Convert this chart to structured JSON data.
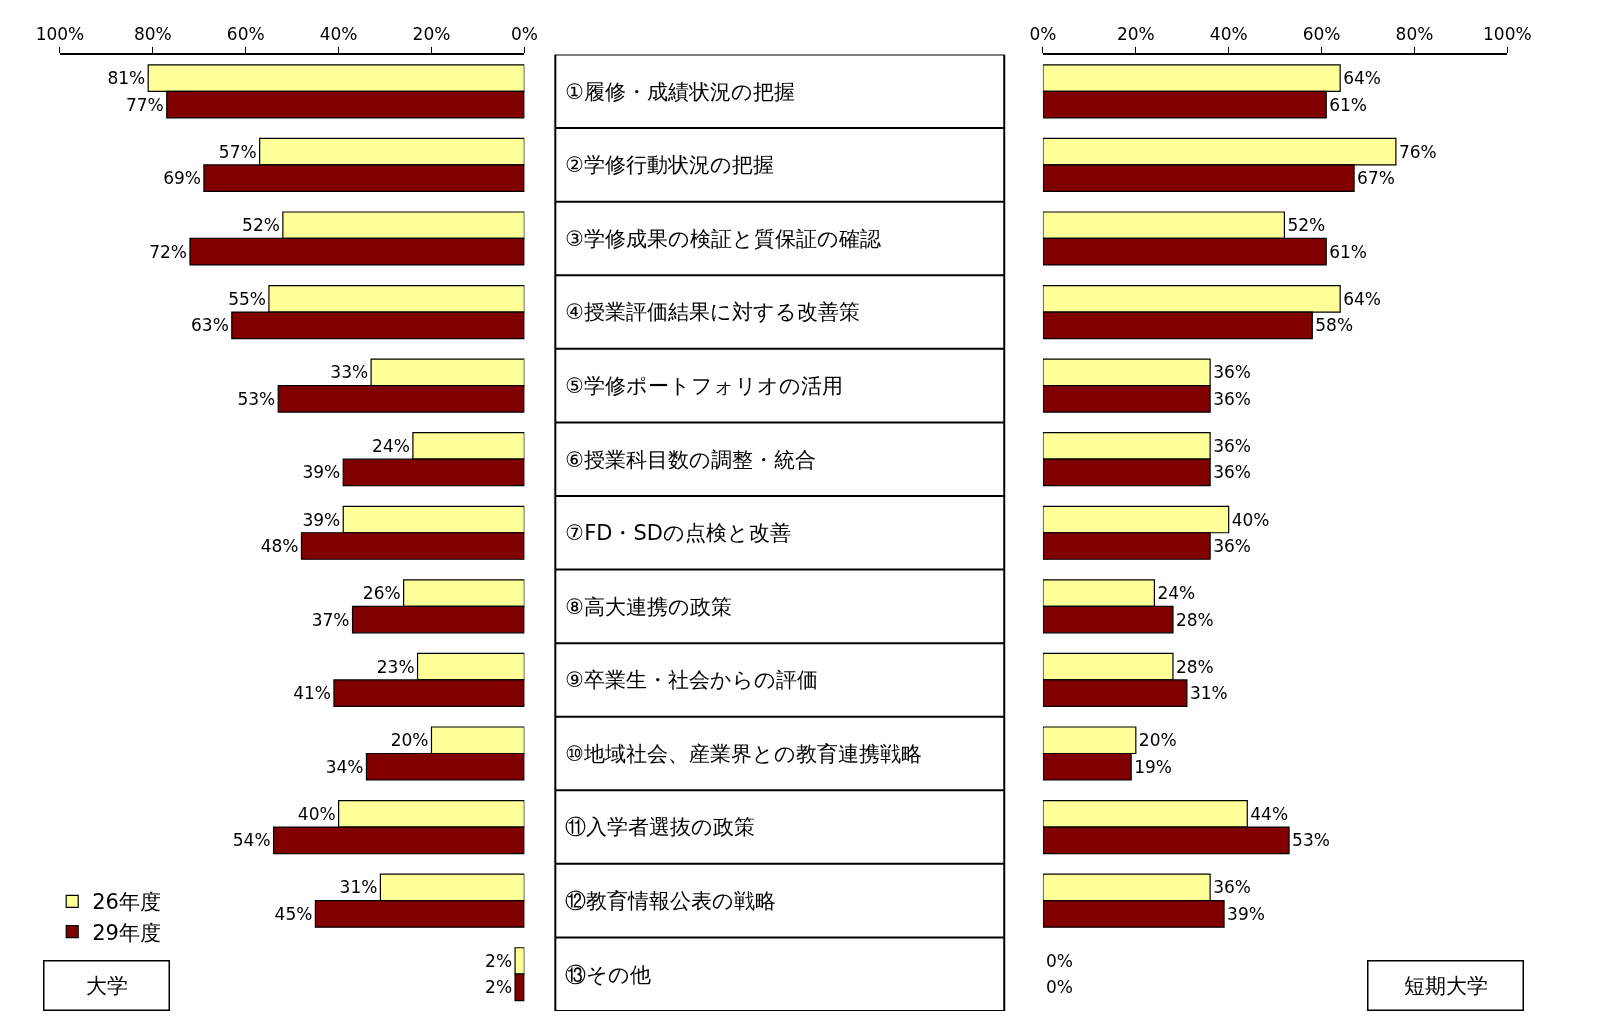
{
  "chart_data": [
    {
      "type": "bar",
      "orientation": "horizontal",
      "categories": [
        "①履修・成績状況の把握",
        "②学修行動状況の把握",
        "③学修成果の検証と質保証の確認",
        "④授業評価結果に対する改善策",
        "⑤学修ポートフォリオの活用",
        "⑥授業科目数の調整・統合",
        "⑦FD・SDの点検と改善",
        "⑧高大連携の政策",
        "⑨卒業生・社会からの評価",
        "⑩地域社会、産業界との教育連携戦略",
        "⑪入学者選抜の政策",
        "⑫教育情報公表の戦略",
        "⑬その他"
      ],
      "series": [
        {
          "name": "26年度",
          "color": "#ffff99",
          "values": [
            81,
            57,
            52,
            55,
            33,
            24,
            39,
            26,
            23,
            20,
            40,
            31,
            2
          ],
          "value_labels": [
            "81%",
            "57%",
            "52%",
            "55%",
            "33%",
            "24%",
            "39%",
            "26%",
            "23%",
            "20%",
            "40%",
            "31%",
            "2%"
          ]
        },
        {
          "name": "29年度",
          "color": "#800000",
          "values": [
            77,
            69,
            72,
            63,
            53,
            39,
            48,
            37,
            41,
            34,
            54,
            45,
            2
          ],
          "value_labels": [
            "77%",
            "69%",
            "72%",
            "63%",
            "53%",
            "39%",
            "48%",
            "37%",
            "41%",
            "34%",
            "54%",
            "45%",
            "2%"
          ]
        }
      ],
      "xlim": [
        100,
        0
      ],
      "xticks": [
        {
          "value": 100,
          "label": "100%"
        },
        {
          "value": 80,
          "label": "80%"
        },
        {
          "value": 60,
          "label": "60%"
        },
        {
          "value": 40,
          "label": "40%"
        },
        {
          "value": 20,
          "label": "20%"
        },
        {
          "value": 0,
          "label": "0%"
        }
      ],
      "legend": "bottom left",
      "annotations": [
        "大学"
      ]
    },
    {
      "type": "bar",
      "orientation": "horizontal",
      "categories": [
        null,
        null,
        null,
        null,
        null,
        null,
        null,
        null,
        null,
        null,
        null,
        null,
        null
      ],
      "series": [
        {
          "color": "#ffff99",
          "values": [
            64,
            76,
            52,
            64,
            36,
            36,
            40,
            24,
            28,
            20,
            44,
            36,
            0
          ],
          "value_labels": [
            "64%",
            "76%",
            "52%",
            "64%",
            "36%",
            "36%",
            "40%",
            "24%",
            "28%",
            "20%",
            "44%",
            "36%",
            "0%"
          ]
        },
        {
          "color": "#800000",
          "values": [
            61,
            67,
            61,
            58,
            36,
            36,
            36,
            28,
            31,
            19,
            53,
            39,
            0
          ],
          "value_labels": [
            "61%",
            "67%",
            "61%",
            "58%",
            "36%",
            "36%",
            "36%",
            "28%",
            "31%",
            "19%",
            "53%",
            "39%",
            "0%"
          ]
        }
      ],
      "xlim": [
        0,
        100
      ],
      "xticks": [
        {
          "value": 0,
          "label": "0%"
        },
        {
          "value": 20,
          "label": "20%"
        },
        {
          "value": 40,
          "label": "40%"
        },
        {
          "value": 60,
          "label": "60%"
        },
        {
          "value": 80,
          "label": "80%"
        },
        {
          "value": 100,
          "label": "100%"
        }
      ],
      "tick_labels": "x",
      "annotations": [
        "短期大学"
      ]
    }
  ]
}
